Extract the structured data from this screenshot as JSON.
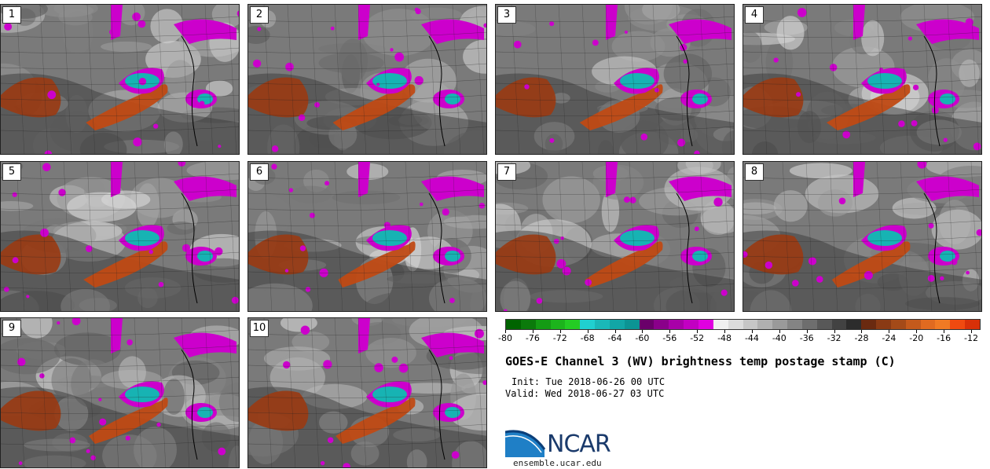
{
  "panels": [
    {
      "label": "1"
    },
    {
      "label": "2"
    },
    {
      "label": "3"
    },
    {
      "label": "4"
    },
    {
      "label": "5"
    },
    {
      "label": "6"
    },
    {
      "label": "7"
    },
    {
      "label": "8"
    },
    {
      "label": "9"
    },
    {
      "label": "10"
    }
  ],
  "colorbar": {
    "ticks": [
      "-80",
      "-76",
      "-72",
      "-68",
      "-64",
      "-60",
      "-56",
      "-52",
      "-48",
      "-44",
      "-40",
      "-36",
      "-32",
      "-28",
      "-24",
      "-20",
      "-16",
      "-12"
    ],
    "colors": [
      "#006400",
      "#0b7a0b",
      "#149b14",
      "#1cb41c",
      "#24cc24",
      "#20d0d0",
      "#1ab8b8",
      "#12a6a6",
      "#0c9494",
      "#6a006a",
      "#8a008a",
      "#a800a8",
      "#c200c2",
      "#e000e0",
      "#f0f0f0",
      "#dcdcdc",
      "#c6c6c6",
      "#b0b0b0",
      "#9a9a9a",
      "#848484",
      "#6e6e6e",
      "#585858",
      "#424242",
      "#2c2c2c",
      "#6a2a10",
      "#8a3a14",
      "#a44a18",
      "#c45a1c",
      "#e06a20",
      "#f07a24",
      "#f04a10",
      "#d83008"
    ]
  },
  "title": "GOES-E Channel 3 (WV) brightness temp postage stamp (C)",
  "init": "Init: Tue 2018-06-26 00 UTC",
  "valid": "Valid: Wed 2018-06-27 03 UTC",
  "logo": {
    "name": "NCAR",
    "url": "ensemble.ucar.edu"
  }
}
